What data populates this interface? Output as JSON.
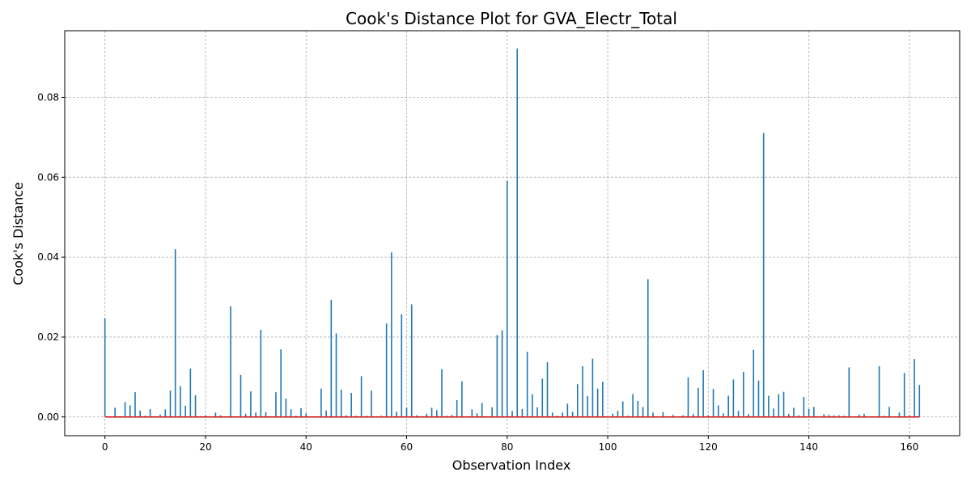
{
  "chart_data": {
    "type": "stem",
    "title": "Cook's Distance Plot for GVA_Electr_Total",
    "xlabel": "Observation Index",
    "ylabel": "Cook's Distance",
    "xlim": [
      -8,
      170
    ],
    "ylim": [
      -0.0047,
      0.0967
    ],
    "xticks": [
      0,
      20,
      40,
      60,
      80,
      100,
      120,
      140,
      160
    ],
    "yticks": [
      0.0,
      0.02,
      0.04,
      0.06,
      0.08
    ],
    "ytick_labels": [
      "0.00",
      "0.02",
      "0.04",
      "0.06",
      "0.08"
    ],
    "grid": true,
    "colors": {
      "stem": "#1f77b4",
      "baseline": "#d62728",
      "grid": "#b0b0b0"
    },
    "x": [
      0,
      1,
      2,
      3,
      4,
      5,
      6,
      7,
      8,
      9,
      10,
      11,
      12,
      13,
      14,
      15,
      16,
      17,
      18,
      19,
      20,
      21,
      22,
      23,
      24,
      25,
      26,
      27,
      28,
      29,
      30,
      31,
      32,
      33,
      34,
      35,
      36,
      37,
      38,
      39,
      40,
      41,
      42,
      43,
      44,
      45,
      46,
      47,
      48,
      49,
      50,
      51,
      52,
      53,
      54,
      55,
      56,
      57,
      58,
      59,
      60,
      61,
      62,
      63,
      64,
      65,
      66,
      67,
      68,
      69,
      70,
      71,
      72,
      73,
      74,
      75,
      76,
      77,
      78,
      79,
      80,
      81,
      82,
      83,
      84,
      85,
      86,
      87,
      88,
      89,
      90,
      91,
      92,
      93,
      94,
      95,
      96,
      97,
      98,
      99,
      100,
      101,
      102,
      103,
      104,
      105,
      106,
      107,
      108,
      109,
      110,
      111,
      112,
      113,
      114,
      115,
      116,
      117,
      118,
      119,
      120,
      121,
      122,
      123,
      124,
      125,
      126,
      127,
      128,
      129,
      130,
      131,
      132,
      133,
      134,
      135,
      136,
      137,
      138,
      139,
      140,
      141,
      142,
      143,
      144,
      145,
      146,
      147,
      148,
      149,
      150,
      151,
      152,
      153,
      154,
      155,
      156,
      157,
      158,
      159,
      160,
      161,
      162
    ],
    "values": [
      0.0247,
      0.0001,
      0.0023,
      0.0002,
      0.0037,
      0.0029,
      0.0062,
      0.0016,
      0.0003,
      0.002,
      0.0002,
      0.0006,
      0.0019,
      0.0066,
      0.042,
      0.0077,
      0.0028,
      0.0121,
      0.0054,
      0.0002,
      0.0004,
      0.0002,
      0.0011,
      0.0004,
      0.0002,
      0.0277,
      0.0002,
      0.0105,
      0.0008,
      0.0064,
      0.0011,
      0.0218,
      0.0012,
      0.0002,
      0.0062,
      0.0169,
      0.0046,
      0.0019,
      0.0003,
      0.0022,
      0.0009,
      0.0001,
      0.0002,
      0.0071,
      0.0016,
      0.0293,
      0.0209,
      0.0068,
      0.0004,
      0.006,
      0.0003,
      0.0102,
      0.0003,
      0.0066,
      0.0001,
      0.0003,
      0.0234,
      0.0412,
      0.0013,
      0.0257,
      0.0023,
      0.0282,
      0.0004,
      0.0002,
      0.0008,
      0.0023,
      0.0017,
      0.012,
      0.0003,
      0.0005,
      0.0042,
      0.0089,
      0.0001,
      0.0019,
      0.0009,
      0.0035,
      0.0002,
      0.0024,
      0.0205,
      0.0217,
      0.0591,
      0.0015,
      0.0922,
      0.002,
      0.0163,
      0.0057,
      0.0024,
      0.0096,
      0.0137,
      0.0011,
      0.0003,
      0.0011,
      0.0033,
      0.0013,
      0.0082,
      0.0127,
      0.0052,
      0.0146,
      0.0071,
      0.0088,
      0.0002,
      0.0008,
      0.0015,
      0.0039,
      0.0003,
      0.0057,
      0.004,
      0.0025,
      0.0345,
      0.0011,
      0.0001,
      0.0012,
      0.0002,
      0.0005,
      0.0001,
      0.0004,
      0.0099,
      0.0007,
      0.0073,
      0.0117,
      0.0004,
      0.007,
      0.0029,
      0.0009,
      0.0053,
      0.0094,
      0.0015,
      0.0113,
      0.0007,
      0.0168,
      0.0091,
      0.0711,
      0.0053,
      0.0021,
      0.0057,
      0.0063,
      0.0008,
      0.0023,
      0.0004,
      0.005,
      0.002,
      0.0025,
      0.0001,
      0.0007,
      0.0005,
      0.0004,
      0.0004,
      0.0003,
      0.0124,
      0.0001,
      0.0006,
      0.0008,
      0.0001,
      0.0002,
      0.0127,
      0.0003,
      0.0025,
      0.0001,
      0.0011,
      0.011,
      0.0004,
      0.0145,
      0.008
    ]
  }
}
